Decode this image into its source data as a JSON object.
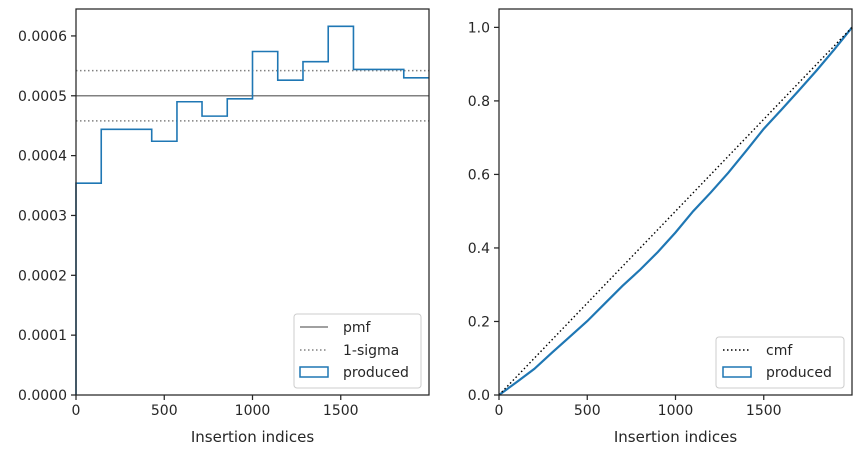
{
  "chart_data": [
    {
      "type": "histogram",
      "xlabel": "Insertion indices",
      "ylabel": "",
      "xlim": [
        0,
        2000
      ],
      "ylim": [
        0,
        0.000645
      ],
      "x_ticks": [
        "0",
        "500",
        "1000",
        "1500"
      ],
      "y_ticks": [
        "0.0000",
        "0.0001",
        "0.0002",
        "0.0003",
        "0.0004",
        "0.0005",
        "0.0006"
      ],
      "legend_position": "lower right",
      "grid": false,
      "pmf": 0.0005,
      "sigma_band": [
        0.000458,
        0.000542
      ],
      "series": [
        {
          "name": "produced",
          "bin_edges": [
            0,
            143,
            429,
            572,
            714,
            857,
            1000,
            1143,
            1286,
            1429,
            1572,
            1857,
            2000
          ],
          "values": [
            0.000354,
            0.000444,
            0.000424,
            0.00049,
            0.000466,
            0.000495,
            0.000574,
            0.000526,
            0.000557,
            0.000616,
            0.000544,
            0.00053
          ]
        }
      ],
      "legend": [
        {
          "label": "pmf",
          "color": "#808080",
          "style": "solid"
        },
        {
          "label": "1-sigma",
          "color": "#808080",
          "style": "dotted"
        },
        {
          "label": "produced",
          "color": "#1f77b4",
          "style": "box"
        }
      ]
    },
    {
      "type": "line",
      "xlabel": "Insertion indices",
      "ylabel": "",
      "xlim": [
        0,
        2000
      ],
      "ylim": [
        0,
        1.05
      ],
      "x_ticks": [
        "0",
        "500",
        "1000",
        "1500"
      ],
      "y_ticks": [
        "0.0",
        "0.2",
        "0.4",
        "0.6",
        "0.8",
        "1.0"
      ],
      "legend_position": "lower right",
      "grid": false,
      "series": [
        {
          "name": "cmf",
          "x": [
            0,
            2000
          ],
          "y": [
            0,
            1.0
          ]
        },
        {
          "name": "produced",
          "x": [
            0,
            100,
            200,
            300,
            400,
            500,
            600,
            700,
            800,
            900,
            1000,
            1100,
            1200,
            1300,
            1400,
            1500,
            1600,
            1700,
            1800,
            1900,
            2000
          ],
          "y": [
            0,
            0.035,
            0.071,
            0.115,
            0.158,
            0.201,
            0.249,
            0.297,
            0.341,
            0.389,
            0.442,
            0.5,
            0.551,
            0.605,
            0.664,
            0.724,
            0.776,
            0.829,
            0.883,
            0.94,
            1.0
          ]
        }
      ],
      "legend": [
        {
          "label": "cmf",
          "color": "#000000",
          "style": "dotted"
        },
        {
          "label": "produced",
          "color": "#1f77b4",
          "style": "box"
        }
      ]
    }
  ]
}
